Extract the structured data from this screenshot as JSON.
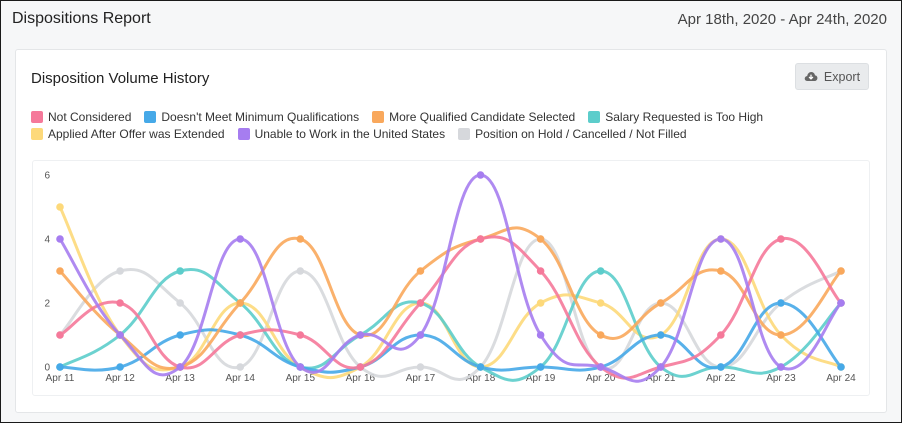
{
  "header": {
    "title": "Dispositions Report",
    "date_range": "Apr 18th, 2020 - Apr 24th, 2020"
  },
  "card": {
    "title": "Disposition Volume History",
    "export_label": "Export",
    "export_icon": "cloud-download-icon"
  },
  "chart_data": {
    "type": "line",
    "smooth": true,
    "categories": [
      "Apr 11",
      "Apr 12",
      "Apr 13",
      "Apr 14",
      "Apr 15",
      "Apr 16",
      "Apr 17",
      "Apr 18",
      "Apr 19",
      "Apr 20",
      "Apr 21",
      "Apr 22",
      "Apr 23",
      "Apr 24"
    ],
    "ylim": [
      0,
      6
    ],
    "yticks": [
      0,
      2,
      4,
      6
    ],
    "grid": false,
    "legend_position": "top-left",
    "series": [
      {
        "name": "Not Considered",
        "color": "#f5799a",
        "values": [
          1,
          2,
          0,
          1,
          1,
          0,
          2,
          4,
          3,
          0,
          0,
          1,
          4,
          2
        ]
      },
      {
        "name": "Doesn't Meet Minimum Qualifications",
        "color": "#46a9e8",
        "values": [
          0,
          0,
          1,
          1,
          0,
          0,
          1,
          0,
          0,
          0,
          1,
          0,
          2,
          0
        ]
      },
      {
        "name": "More Qualified Candidate Selected",
        "color": "#f9a85c",
        "values": [
          3,
          1,
          0,
          2,
          4,
          1,
          3,
          4,
          4,
          1,
          2,
          3,
          1,
          3
        ]
      },
      {
        "name": "Salary Requested is Too High",
        "color": "#5ccdcb",
        "values": [
          0,
          1,
          3,
          2,
          0,
          1,
          2,
          0,
          0,
          3,
          0,
          0,
          0,
          2
        ]
      },
      {
        "name": "Applied After Offer was Extended",
        "color": "#fdd97a",
        "values": [
          5,
          1,
          0,
          2,
          0,
          0,
          2,
          0,
          2,
          2,
          1,
          4,
          1,
          0
        ]
      },
      {
        "name": "Unable to Work in the United States",
        "color": "#a67df0",
        "values": [
          4,
          1,
          0,
          4,
          0,
          1,
          1,
          6,
          1,
          0,
          0,
          4,
          0,
          2
        ]
      },
      {
        "name": "Position on Hold / Cancelled / Not Filled",
        "color": "#d6d8dc",
        "values": [
          1,
          3,
          2,
          0,
          3,
          0,
          0,
          0,
          4,
          0,
          2,
          0,
          2,
          3
        ]
      }
    ]
  }
}
